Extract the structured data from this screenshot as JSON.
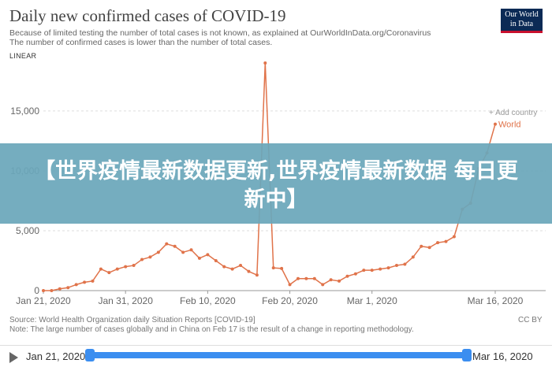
{
  "header": {
    "title": "Daily new confirmed cases of COVID-19",
    "subtitle_line1": "Because of limited testing the number of total cases is not known, as explained at OurWorldInData.org/Coronavirus",
    "subtitle_line2": "The number of confirmed cases is lower than the number of total cases.",
    "scale": "LINEAR"
  },
  "logo": {
    "line1": "Our World",
    "line2": "in Data"
  },
  "add_country": "+ Add country",
  "banner": {
    "text": "【世界疫情最新数据更新,世界疫情最新数据 每日更新中】"
  },
  "footer": {
    "source": "Source: World Health Organization daily Situation Reports [COVID-19]",
    "note": "Note: The large number of cases globally and in China on Feb 17 is the result of a change in reporting methodology.",
    "license": "CC BY"
  },
  "timeline": {
    "start": "Jan 21, 2020",
    "end": "Mar 16, 2020"
  },
  "colors": {
    "series": "#e0734a",
    "grid": "#dddddd",
    "axis": "#666666",
    "timeline": "#3b8ef0"
  },
  "chart_data": {
    "type": "line",
    "title": "Daily new confirmed cases of COVID-19",
    "xlabel": "",
    "ylabel": "",
    "ylim": [
      0,
      19000
    ],
    "yticks": [
      0,
      5000,
      10000,
      15000
    ],
    "ytick_labels": [
      "0",
      "5,000",
      "10,000",
      "15,000"
    ],
    "xtick_dates": [
      "2020-01-21",
      "2020-01-31",
      "2020-02-10",
      "2020-02-20",
      "2020-03-01",
      "2020-03-16"
    ],
    "xtick_labels": [
      "Jan 21, 2020",
      "Jan 31, 2020",
      "Feb 10, 2020",
      "Feb 20, 2020",
      "Mar 1, 2020",
      "Mar 16, 2020"
    ],
    "x": [
      "2020-01-21",
      "2020-01-22",
      "2020-01-23",
      "2020-01-24",
      "2020-01-25",
      "2020-01-26",
      "2020-01-27",
      "2020-01-28",
      "2020-01-29",
      "2020-01-30",
      "2020-01-31",
      "2020-02-01",
      "2020-02-02",
      "2020-02-03",
      "2020-02-04",
      "2020-02-05",
      "2020-02-06",
      "2020-02-07",
      "2020-02-08",
      "2020-02-09",
      "2020-02-10",
      "2020-02-11",
      "2020-02-12",
      "2020-02-13",
      "2020-02-14",
      "2020-02-15",
      "2020-02-16",
      "2020-02-17",
      "2020-02-18",
      "2020-02-19",
      "2020-02-20",
      "2020-02-21",
      "2020-02-22",
      "2020-02-23",
      "2020-02-24",
      "2020-02-25",
      "2020-02-26",
      "2020-02-27",
      "2020-02-28",
      "2020-02-29",
      "2020-03-01",
      "2020-03-02",
      "2020-03-03",
      "2020-03-04",
      "2020-03-05",
      "2020-03-06",
      "2020-03-07",
      "2020-03-08",
      "2020-03-09",
      "2020-03-10",
      "2020-03-11",
      "2020-03-12",
      "2020-03-13",
      "2020-03-14",
      "2020-03-15",
      "2020-03-16"
    ],
    "series": [
      {
        "name": "World",
        "values": [
          0,
          0,
          150,
          250,
          500,
          700,
          800,
          1800,
          1500,
          1800,
          2000,
          2100,
          2600,
          2800,
          3200,
          3900,
          3700,
          3200,
          3400,
          2700,
          3000,
          2500,
          2000,
          1800,
          2100,
          1600,
          1300,
          19000,
          1900,
          1850,
          500,
          1000,
          1000,
          1000,
          500,
          900,
          800,
          1200,
          1400,
          1700,
          1700,
          1800,
          1900,
          2100,
          2200,
          2800,
          3700,
          3600,
          4000,
          4100,
          4500,
          6800,
          7300,
          10200,
          11500,
          13900
        ]
      }
    ],
    "grid": true,
    "legend": "inline-right"
  }
}
